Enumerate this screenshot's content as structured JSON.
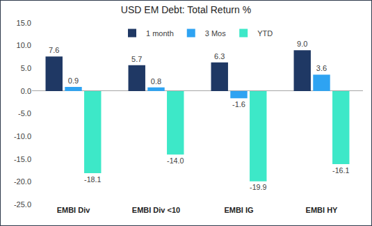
{
  "chart_data": {
    "type": "bar",
    "title": "USD EM Debt: Total Return %",
    "categories": [
      "EMBI Div",
      "EMBI Div <10",
      "EMBI IG",
      "EMBI HY"
    ],
    "series": [
      {
        "name": "1 month",
        "color": "#1f3864",
        "values": [
          7.6,
          5.7,
          6.3,
          9.0
        ],
        "value_labels": [
          "7.6",
          "5.7",
          "6.3",
          "9.0"
        ]
      },
      {
        "name": "3 Mos",
        "color": "#2ea3f2",
        "values": [
          0.9,
          0.8,
          -1.6,
          3.6
        ],
        "value_labels": [
          "0.9",
          "0.8",
          "-1.6",
          "3.6"
        ]
      },
      {
        "name": "YTD",
        "color": "#3de8c8",
        "values": [
          -18.1,
          -14.0,
          -19.9,
          -16.1
        ],
        "value_labels": [
          "-18.1",
          "-14.0",
          "-19.9",
          "-16.1"
        ]
      }
    ],
    "ylim": [
      -25,
      15
    ],
    "yticks": [
      {
        "value": -25,
        "label": "-25.0"
      },
      {
        "value": -20,
        "label": "-20.0"
      },
      {
        "value": -15,
        "label": "-15.0"
      },
      {
        "value": -10,
        "label": "-10.0"
      },
      {
        "value": -5,
        "label": "-5.0"
      },
      {
        "value": 0,
        "label": "0.0"
      },
      {
        "value": 5,
        "label": "5.0"
      },
      {
        "value": 10,
        "label": "10.0"
      },
      {
        "value": 15,
        "label": "15.0"
      }
    ],
    "grid": false,
    "legend": "top",
    "data_labels": true
  }
}
